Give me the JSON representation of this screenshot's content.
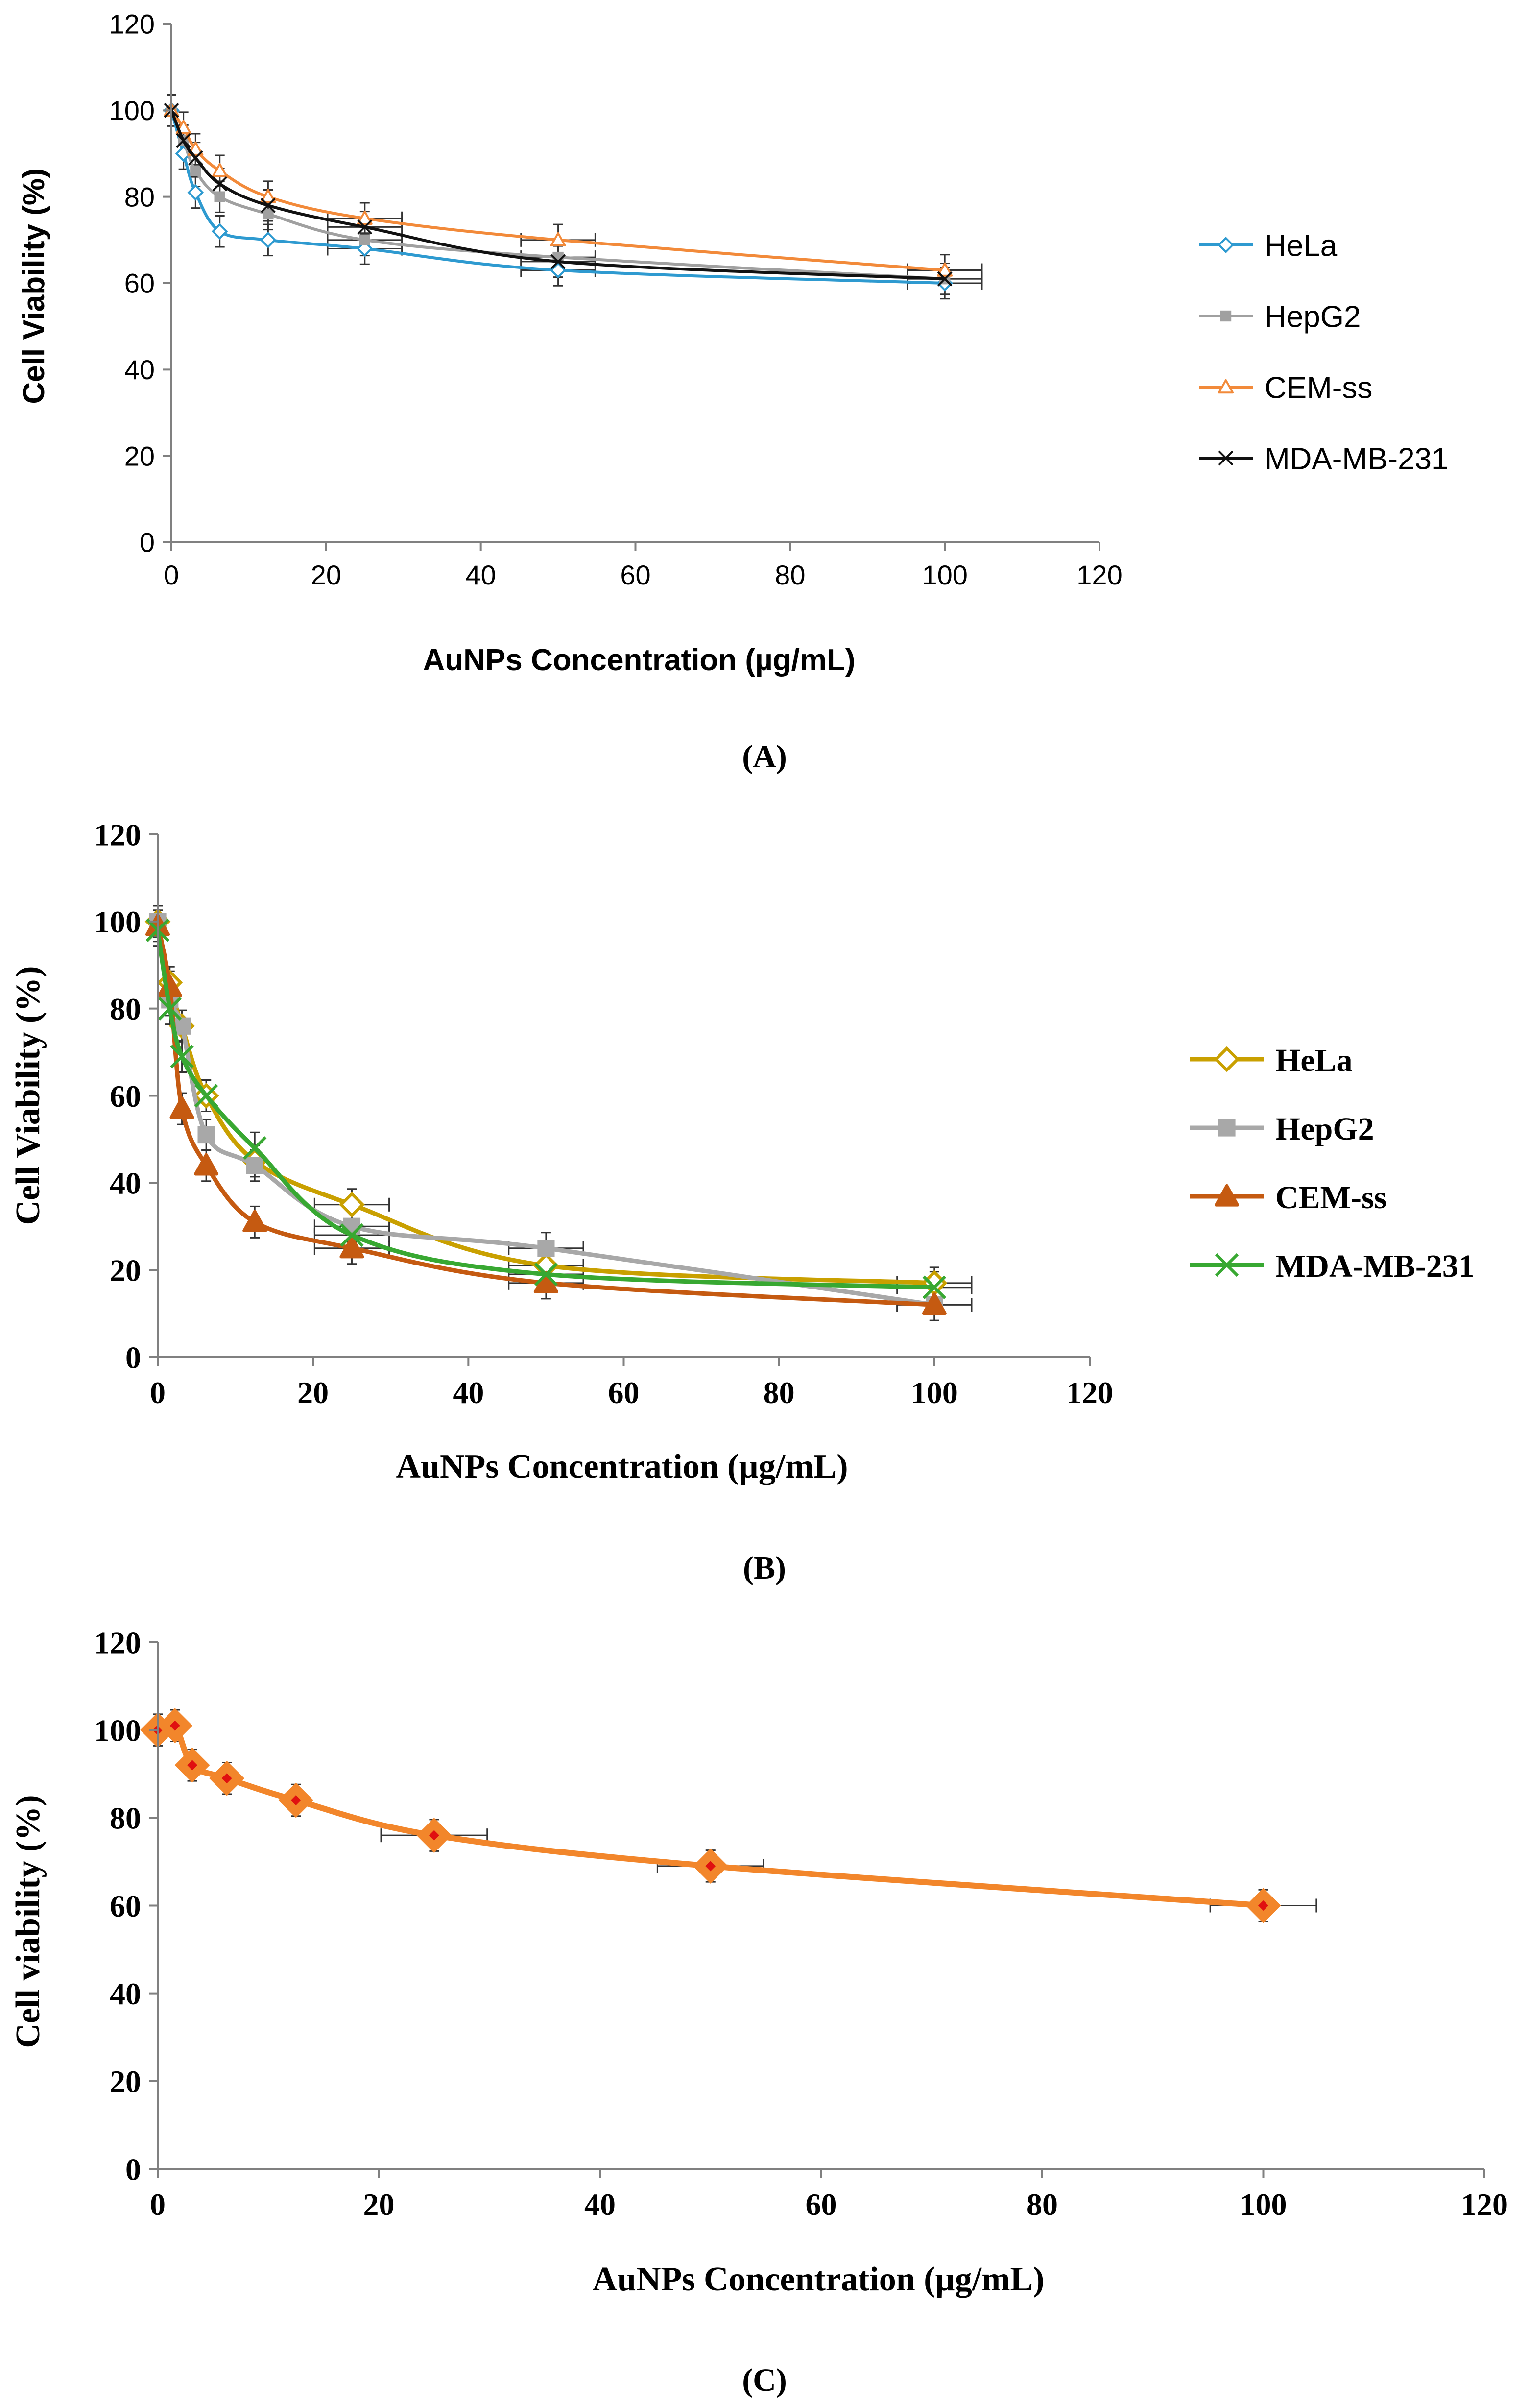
{
  "chart_data": [
    {
      "type": "line",
      "panel_label": "(A)",
      "xlabel": "AuNPs Concentration (µg/mL)",
      "ylabel": "Cell Viability (%)",
      "xlim": [
        0,
        120
      ],
      "ylim": [
        0,
        120
      ],
      "x_ticks": [
        "0",
        "20",
        "40",
        "60",
        "80",
        "100",
        "120"
      ],
      "y_ticks": [
        "0",
        "20",
        "40",
        "60",
        "80",
        "100",
        "120"
      ],
      "grid": false,
      "legend_position": "right",
      "x": [
        0,
        1.56,
        3.125,
        6.25,
        12.5,
        25,
        50,
        100
      ],
      "series": [
        {
          "name": "HeLa",
          "color": "#2e9ad0",
          "marker": "diamond-open",
          "values": [
            100,
            90,
            81,
            72,
            70,
            68,
            63,
            60
          ]
        },
        {
          "name": "HepG2",
          "color": "#a0a0a0",
          "marker": "square",
          "values": [
            100,
            93,
            86,
            80,
            76,
            70,
            66,
            61
          ]
        },
        {
          "name": "CEM-ss",
          "color": "#f28a3a",
          "marker": "triangle-open",
          "values": [
            100,
            96,
            91,
            86,
            80,
            75,
            70,
            63
          ]
        },
        {
          "name": "MDA-MB-231",
          "color": "#111111",
          "marker": "x",
          "values": [
            100,
            93,
            89,
            83,
            78,
            73,
            65,
            61
          ]
        }
      ]
    },
    {
      "type": "line",
      "panel_label": "(B)",
      "xlabel": "AuNPs Concentration (µg/mL)",
      "ylabel": "Cell Viability (%)",
      "xlim": [
        0,
        120
      ],
      "ylim": [
        0,
        120
      ],
      "x_ticks": [
        "0",
        "20",
        "40",
        "60",
        "80",
        "100",
        "120"
      ],
      "y_ticks": [
        "0",
        "20",
        "40",
        "60",
        "80",
        "100",
        "120"
      ],
      "grid": false,
      "legend_position": "right",
      "x": [
        0,
        1.56,
        3.125,
        6.25,
        12.5,
        25,
        50,
        100
      ],
      "series": [
        {
          "name": "HeLa",
          "color": "#c9a000",
          "marker": "diamond-open",
          "values": [
            100,
            86,
            76,
            60,
            45,
            35,
            21,
            17
          ]
        },
        {
          "name": "HepG2",
          "color": "#a8a8a8",
          "marker": "square",
          "values": [
            100,
            82,
            76,
            51,
            44,
            30,
            25,
            12
          ]
        },
        {
          "name": "CEM-ss",
          "color": "#c55a11",
          "marker": "triangle",
          "values": [
            99,
            85,
            57,
            44,
            31,
            25,
            17,
            12
          ]
        },
        {
          "name": "MDA-MB-231",
          "color": "#38a832",
          "marker": "x",
          "values": [
            98,
            80,
            69,
            60,
            48,
            28,
            19,
            16
          ]
        }
      ]
    },
    {
      "type": "line",
      "panel_label": "(C)",
      "xlabel": "AuNPs Concentration (µg/mL)",
      "ylabel": "Cell viability (%)",
      "xlim": [
        0,
        120
      ],
      "ylim": [
        0,
        120
      ],
      "x_ticks": [
        "0",
        "20",
        "40",
        "60",
        "80",
        "100",
        "120"
      ],
      "y_ticks": [
        "0",
        "20",
        "40",
        "60",
        "80",
        "100",
        "120"
      ],
      "grid": false,
      "x": [
        0,
        1.56,
        3.125,
        6.25,
        12.5,
        25,
        50,
        100
      ],
      "series": [
        {
          "color": "#f2862b",
          "marker": "diamond",
          "values": [
            100,
            101,
            92,
            89,
            84,
            76,
            69,
            60
          ]
        }
      ]
    }
  ]
}
